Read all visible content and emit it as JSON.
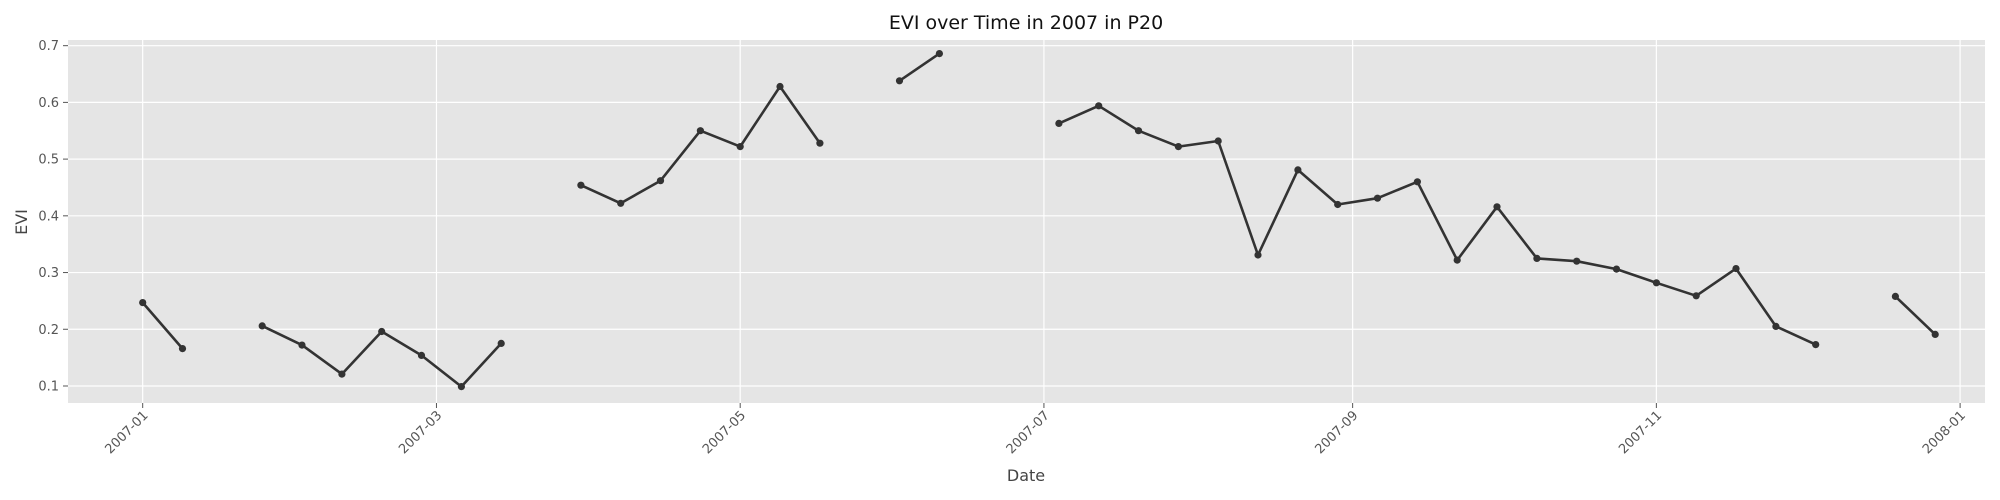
{
  "chart_data": {
    "type": "line",
    "title": "EVI over Time in 2007 in P20",
    "xlabel": "Date",
    "ylabel": "EVI",
    "grid": true,
    "legend": "none",
    "xlim": [
      "2006-12-17",
      "2008-01-06"
    ],
    "ylim": [
      0.07,
      0.71
    ],
    "x_ticks": [
      "2007-01",
      "2007-03",
      "2007-05",
      "2007-07",
      "2007-09",
      "2007-11",
      "2008-01"
    ],
    "y_ticks": [
      "0.1",
      "0.2",
      "0.3",
      "0.4",
      "0.5",
      "0.6",
      "0.7"
    ],
    "colors": {
      "background": "#e5e5e5",
      "grid": "#ffffff",
      "line": "#333333"
    },
    "series": [
      {
        "segments": [
          [
            {
              "x": "2007-01-01",
              "y": 0.247
            },
            {
              "x": "2007-01-09",
              "y": 0.166
            }
          ],
          [
            {
              "x": "2007-01-25",
              "y": 0.206
            },
            {
              "x": "2007-02-02",
              "y": 0.172
            },
            {
              "x": "2007-02-10",
              "y": 0.121
            },
            {
              "x": "2007-02-18",
              "y": 0.196
            },
            {
              "x": "2007-02-26",
              "y": 0.154
            },
            {
              "x": "2007-03-06",
              "y": 0.099
            },
            {
              "x": "2007-03-14",
              "y": 0.175
            }
          ],
          [
            {
              "x": "2007-03-30",
              "y": 0.454
            },
            {
              "x": "2007-04-07",
              "y": 0.422
            },
            {
              "x": "2007-04-15",
              "y": 0.462
            },
            {
              "x": "2007-04-23",
              "y": 0.55
            },
            {
              "x": "2007-05-01",
              "y": 0.522
            },
            {
              "x": "2007-05-09",
              "y": 0.628
            },
            {
              "x": "2007-05-17",
              "y": 0.528
            }
          ],
          [
            {
              "x": "2007-06-02",
              "y": 0.638
            },
            {
              "x": "2007-06-10",
              "y": 0.686
            }
          ],
          [
            {
              "x": "2007-07-04",
              "y": 0.563
            },
            {
              "x": "2007-07-12",
              "y": 0.594
            },
            {
              "x": "2007-07-20",
              "y": 0.55
            },
            {
              "x": "2007-07-28",
              "y": 0.522
            },
            {
              "x": "2007-08-05",
              "y": 0.532
            },
            {
              "x": "2007-08-13",
              "y": 0.331
            },
            {
              "x": "2007-08-21",
              "y": 0.481
            },
            {
              "x": "2007-08-29",
              "y": 0.42
            },
            {
              "x": "2007-09-06",
              "y": 0.431
            },
            {
              "x": "2007-09-14",
              "y": 0.46
            },
            {
              "x": "2007-09-22",
              "y": 0.322
            },
            {
              "x": "2007-09-30",
              "y": 0.416
            },
            {
              "x": "2007-10-08",
              "y": 0.325
            },
            {
              "x": "2007-10-16",
              "y": 0.32
            },
            {
              "x": "2007-10-24",
              "y": 0.306
            },
            {
              "x": "2007-11-01",
              "y": 0.282
            },
            {
              "x": "2007-11-09",
              "y": 0.259
            },
            {
              "x": "2007-11-17",
              "y": 0.307
            },
            {
              "x": "2007-11-25",
              "y": 0.205
            },
            {
              "x": "2007-12-03",
              "y": 0.173
            }
          ],
          [
            {
              "x": "2007-12-19",
              "y": 0.258
            },
            {
              "x": "2007-12-27",
              "y": 0.191
            }
          ]
        ]
      }
    ]
  }
}
